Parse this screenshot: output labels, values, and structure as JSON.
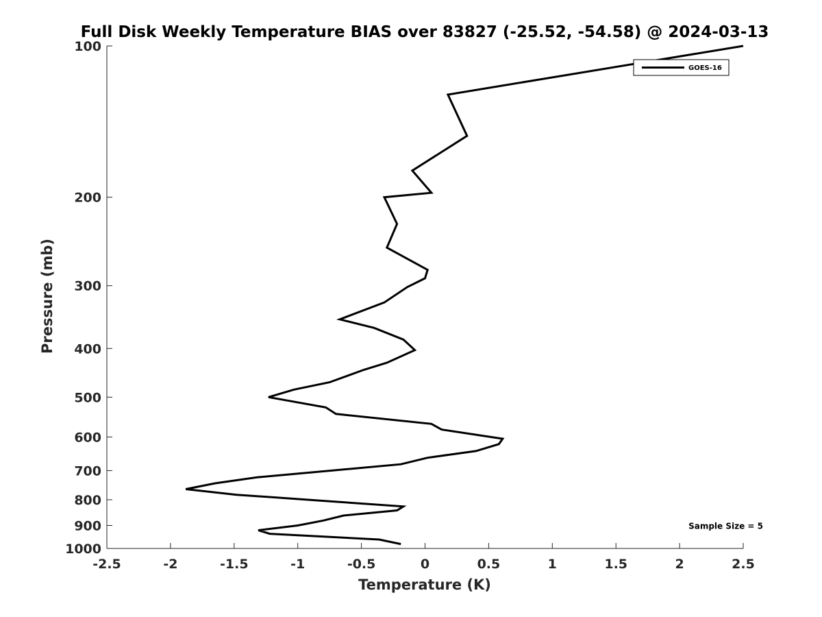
{
  "chart_data": {
    "type": "line",
    "title": "Full Disk Weekly Temperature BIAS over 83827 (-25.52, -54.58) @ 2024-03-13",
    "xlabel": "Temperature (K)",
    "ylabel": "Pressure (mb)",
    "xlim": [
      -2.5,
      2.5
    ],
    "ylim": [
      100,
      1000
    ],
    "y_scale": "log",
    "y_reversed": true,
    "x_ticks": [
      -2.5,
      -2,
      -1.5,
      -1,
      -0.5,
      0,
      0.5,
      1,
      1.5,
      2,
      2.5
    ],
    "x_tick_labels": [
      "-2.5",
      "-2",
      "-1.5",
      "-1",
      "-0.5",
      "0",
      "0.5",
      "1",
      "1.5",
      "2",
      "2.5"
    ],
    "y_ticks": [
      100,
      200,
      300,
      400,
      500,
      600,
      700,
      800,
      900,
      1000
    ],
    "y_tick_labels": [
      "100",
      "200",
      "300",
      "400",
      "500",
      "600",
      "700",
      "800",
      "900",
      "1000"
    ],
    "grid": false,
    "legend_position": "top-right",
    "series": [
      {
        "name": "GOES-16",
        "color": "#000000",
        "points": [
          [
            2.5,
            100
          ],
          [
            0.18,
            125
          ],
          [
            0.33,
            151
          ],
          [
            -0.1,
            177
          ],
          [
            0.05,
            196
          ],
          [
            -0.32,
            200
          ],
          [
            -0.22,
            226
          ],
          [
            -0.3,
            252
          ],
          [
            0.02,
            279
          ],
          [
            0.0,
            290
          ],
          [
            -0.14,
            302
          ],
          [
            -0.32,
            324
          ],
          [
            -0.67,
            350
          ],
          [
            -0.4,
            364
          ],
          [
            -0.17,
            384
          ],
          [
            -0.08,
            403
          ],
          [
            -0.3,
            427
          ],
          [
            -0.48,
            441
          ],
          [
            -0.75,
            467
          ],
          [
            -1.03,
            483
          ],
          [
            -1.23,
            500
          ],
          [
            -0.78,
            524
          ],
          [
            -0.7,
            540
          ],
          [
            0.05,
            565
          ],
          [
            0.13,
            580
          ],
          [
            0.61,
            605
          ],
          [
            0.58,
            620
          ],
          [
            0.4,
            640
          ],
          [
            0.02,
            660
          ],
          [
            -0.19,
            680
          ],
          [
            -1.32,
            722
          ],
          [
            -1.65,
            742
          ],
          [
            -1.88,
            762
          ],
          [
            -1.48,
            782
          ],
          [
            -0.68,
            808
          ],
          [
            -0.17,
            825
          ],
          [
            -0.22,
            840
          ],
          [
            -0.64,
            860
          ],
          [
            -0.8,
            880
          ],
          [
            -1.0,
            900
          ],
          [
            -1.31,
            920
          ],
          [
            -1.22,
            935
          ],
          [
            -0.36,
            960
          ],
          [
            -0.19,
            980
          ]
        ]
      }
    ],
    "annotations": [
      {
        "text": "Sample Size = 5",
        "x": 2.07,
        "y": 900
      }
    ]
  }
}
